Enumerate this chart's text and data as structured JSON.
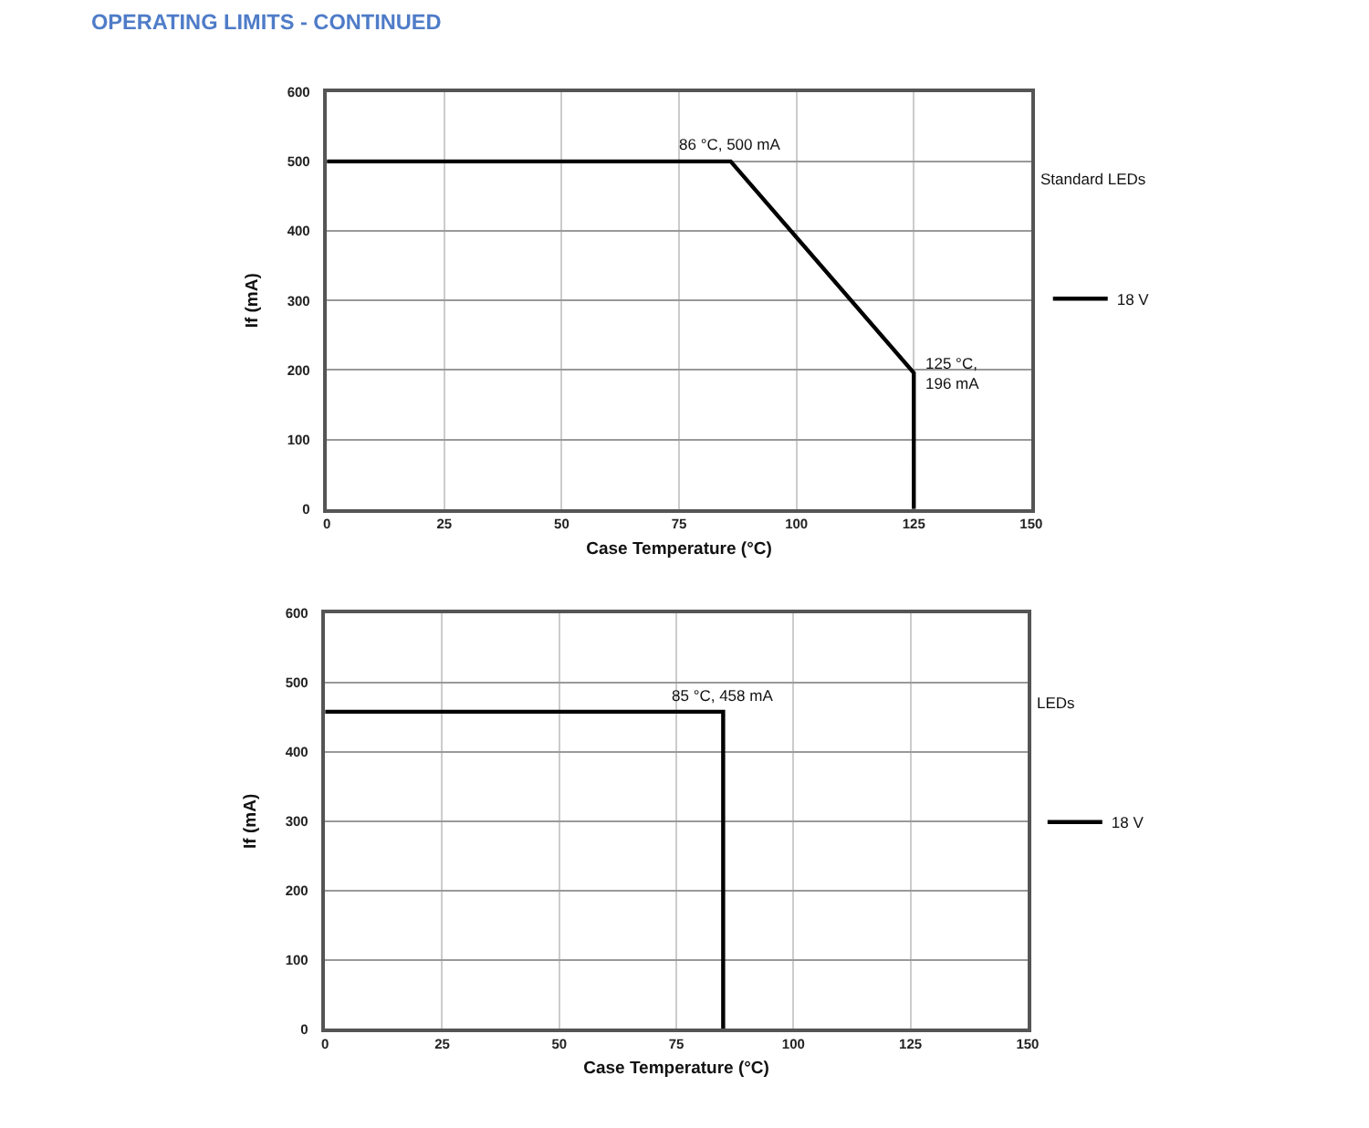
{
  "chart_data": [
    {
      "type": "line",
      "title": "OPERATING LIMITS - CONTINUED",
      "xlabel": "Case Temperature (°C)",
      "ylabel": "If (mA)",
      "legend_title": "Standard LEDs",
      "series": [
        {
          "name": "18 V",
          "color": "#000000",
          "x": [
            0,
            86,
            125,
            125
          ],
          "values": [
            500,
            500,
            196,
            0
          ]
        }
      ],
      "xlim": [
        0,
        150
      ],
      "ylim": [
        0,
        600
      ],
      "xticks": [
        0,
        25,
        50,
        75,
        100,
        125,
        150
      ],
      "yticks": [
        0,
        100,
        200,
        300,
        400,
        500,
        600
      ],
      "grid": true,
      "legend": "right",
      "marker": "none",
      "line_style": "solid",
      "annotations": [
        {
          "text": "86 °C, 500 mA",
          "x": 86,
          "y": 500
        },
        {
          "text": "125 °C,\n196 mA",
          "x": 125,
          "y": 196
        }
      ]
    },
    {
      "type": "line",
      "xlabel": "Case Temperature (°C)",
      "ylabel": "If (mA)",
      "legend_title": "LEDs",
      "series": [
        {
          "name": "18 V",
          "color": "#000000",
          "x": [
            0,
            85,
            85
          ],
          "values": [
            458,
            458,
            0
          ]
        }
      ],
      "xlim": [
        0,
        150
      ],
      "ylim": [
        0,
        600
      ],
      "xticks": [
        0,
        25,
        50,
        75,
        100,
        125,
        150
      ],
      "yticks": [
        0,
        100,
        200,
        300,
        400,
        500,
        600
      ],
      "grid": true,
      "legend": "right",
      "marker": "none",
      "line_style": "solid",
      "annotations": [
        {
          "text": "85 °C, 458 mA",
          "x": 85,
          "y": 458
        }
      ]
    }
  ]
}
